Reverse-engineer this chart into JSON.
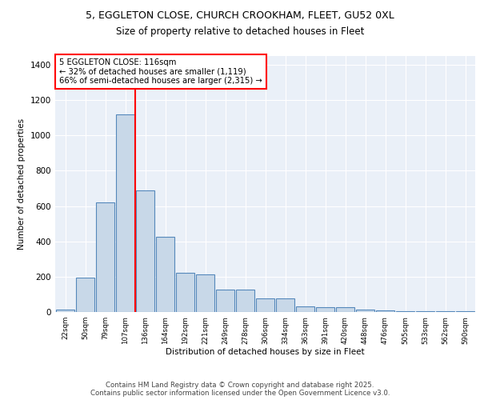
{
  "title_line1": "5, EGGLETON CLOSE, CHURCH CROOKHAM, FLEET, GU52 0XL",
  "title_line2": "Size of property relative to detached houses in Fleet",
  "xlabel": "Distribution of detached houses by size in Fleet",
  "ylabel": "Number of detached properties",
  "categories": [
    "22sqm",
    "50sqm",
    "79sqm",
    "107sqm",
    "136sqm",
    "164sqm",
    "192sqm",
    "221sqm",
    "249sqm",
    "278sqm",
    "306sqm",
    "334sqm",
    "363sqm",
    "391sqm",
    "420sqm",
    "448sqm",
    "476sqm",
    "505sqm",
    "533sqm",
    "562sqm",
    "590sqm"
  ],
  "values": [
    15,
    195,
    620,
    1120,
    690,
    425,
    220,
    215,
    125,
    125,
    75,
    75,
    30,
    25,
    25,
    15,
    10,
    5,
    5,
    5,
    5
  ],
  "bar_color": "#c8d8e8",
  "bar_edge_color": "#5588bb",
  "vline_color": "red",
  "vline_x_idx": 3.5,
  "annotation_title": "5 EGGLETON CLOSE: 116sqm",
  "annotation_line2": "← 32% of detached houses are smaller (1,119)",
  "annotation_line3": "66% of semi-detached houses are larger (2,315) →",
  "annotation_box_color": "white",
  "annotation_box_edge": "red",
  "ylim": [
    0,
    1450
  ],
  "yticks": [
    0,
    200,
    400,
    600,
    800,
    1000,
    1200,
    1400
  ],
  "background_color": "#eaf0f8",
  "grid_color": "white",
  "footer_line1": "Contains HM Land Registry data © Crown copyright and database right 2025.",
  "footer_line2": "Contains public sector information licensed under the Open Government Licence v3.0."
}
